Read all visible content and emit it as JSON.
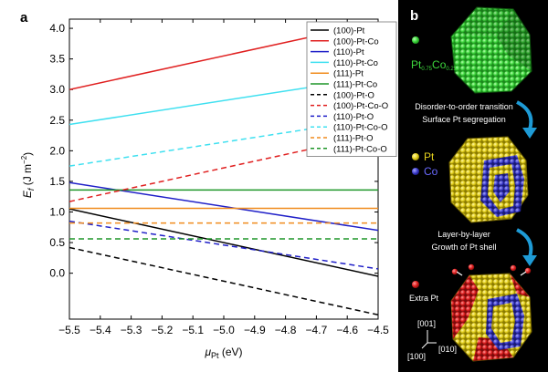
{
  "panel_a": {
    "letter": "a"
  },
  "panel_b": {
    "letter": "b",
    "composition": {
      "main": "Pt",
      "sub1": "0.75",
      "mid": "Co",
      "sub2": "0.25"
    },
    "step1": [
      "Disorder-to-order transition",
      "Surface Pt segregation"
    ],
    "legend_pt": "Pt",
    "legend_co": "Co",
    "step2": [
      "Layer-by-layer",
      "Growth of Pt shell"
    ],
    "extra_pt": "Extra Pt",
    "dir_001": "[001]",
    "dir_100": "[100]",
    "dir_010": "[010]",
    "colors": {
      "green": "#3dd63d",
      "yellow": "#e6d21e",
      "blue": "#3b3bc8",
      "red": "#e02020",
      "arrow": "#1e9bd6"
    }
  },
  "chart_data": {
    "type": "line",
    "ylabel_main": "E",
    "ylabel_sub": "f",
    "ylabel_unit": " (J m",
    "ylabel_sup": "−2",
    "ylabel_close": ")",
    "xlabel_main": "μ",
    "xlabel_sub": "Pt",
    "xlabel_unit": " (eV)",
    "xlim": [
      -5.5,
      -4.5
    ],
    "ylim": [
      -0.75,
      4.15
    ],
    "xticks": [
      -5.5,
      -5.4,
      -5.3,
      -5.2,
      -5.1,
      -5.0,
      -4.9,
      -4.8,
      -4.7,
      -4.6,
      -4.5
    ],
    "xtick_labels": [
      "−5.5",
      "−5.4",
      "−5.3",
      "−5.2",
      "−5.1",
      "−5.0",
      "−4.9",
      "−4.8",
      "−4.7",
      "−4.6",
      "−4.5"
    ],
    "yticks": [
      0.0,
      0.5,
      1.0,
      1.5,
      2.0,
      2.5,
      3.0,
      3.5,
      4.0
    ],
    "ytick_labels": [
      "0.0",
      "0.5",
      "1.0",
      "1.5",
      "2.0",
      "2.5",
      "3.0",
      "3.5",
      "4.0"
    ],
    "grid": false,
    "legend_position": "top-right",
    "series": [
      {
        "name": "(100)-Pt",
        "color": "#000000",
        "dash": "solid",
        "x": [
          -5.5,
          -4.5
        ],
        "y": [
          1.05,
          -0.05
        ]
      },
      {
        "name": "(100)-Pt-Co",
        "color": "#e02020",
        "dash": "solid",
        "x": [
          -5.5,
          -4.5
        ],
        "y": [
          3.0,
          4.1
        ]
      },
      {
        "name": "(110)-Pt",
        "color": "#2020c8",
        "dash": "solid",
        "x": [
          -5.5,
          -4.5
        ],
        "y": [
          1.48,
          0.7
        ]
      },
      {
        "name": "(110)-Pt-Co",
        "color": "#3fe0f0",
        "dash": "solid",
        "x": [
          -5.5,
          -4.5
        ],
        "y": [
          2.43,
          3.21
        ]
      },
      {
        "name": "(111)-Pt",
        "color": "#f08c1e",
        "dash": "solid",
        "x": [
          -5.5,
          -4.5
        ],
        "y": [
          1.06,
          1.06
        ]
      },
      {
        "name": "(111)-Pt-Co",
        "color": "#1e9628",
        "dash": "solid",
        "x": [
          -5.5,
          -4.5
        ],
        "y": [
          1.36,
          1.36
        ]
      },
      {
        "name": "(100)-Pt-O",
        "color": "#000000",
        "dash": "dashed",
        "x": [
          -5.5,
          -4.5
        ],
        "y": [
          0.42,
          -0.68
        ]
      },
      {
        "name": "(100)-Pt-Co-O",
        "color": "#e02020",
        "dash": "dashed",
        "x": [
          -5.5,
          -4.5
        ],
        "y": [
          1.17,
          2.27
        ]
      },
      {
        "name": "(110)-Pt-O",
        "color": "#2020c8",
        "dash": "dashed",
        "x": [
          -5.5,
          -4.5
        ],
        "y": [
          0.85,
          0.07
        ]
      },
      {
        "name": "(110)-Pt-Co-O",
        "color": "#3fe0f0",
        "dash": "dashed",
        "x": [
          -5.5,
          -4.5
        ],
        "y": [
          1.75,
          2.53
        ]
      },
      {
        "name": "(111)-Pt-O",
        "color": "#f08c1e",
        "dash": "dashed",
        "x": [
          -5.5,
          -4.5
        ],
        "y": [
          0.82,
          0.82
        ]
      },
      {
        "name": "(111)-Pt-Co-O",
        "color": "#1e9628",
        "dash": "dashed",
        "x": [
          -5.5,
          -4.5
        ],
        "y": [
          0.56,
          0.56
        ]
      }
    ]
  }
}
